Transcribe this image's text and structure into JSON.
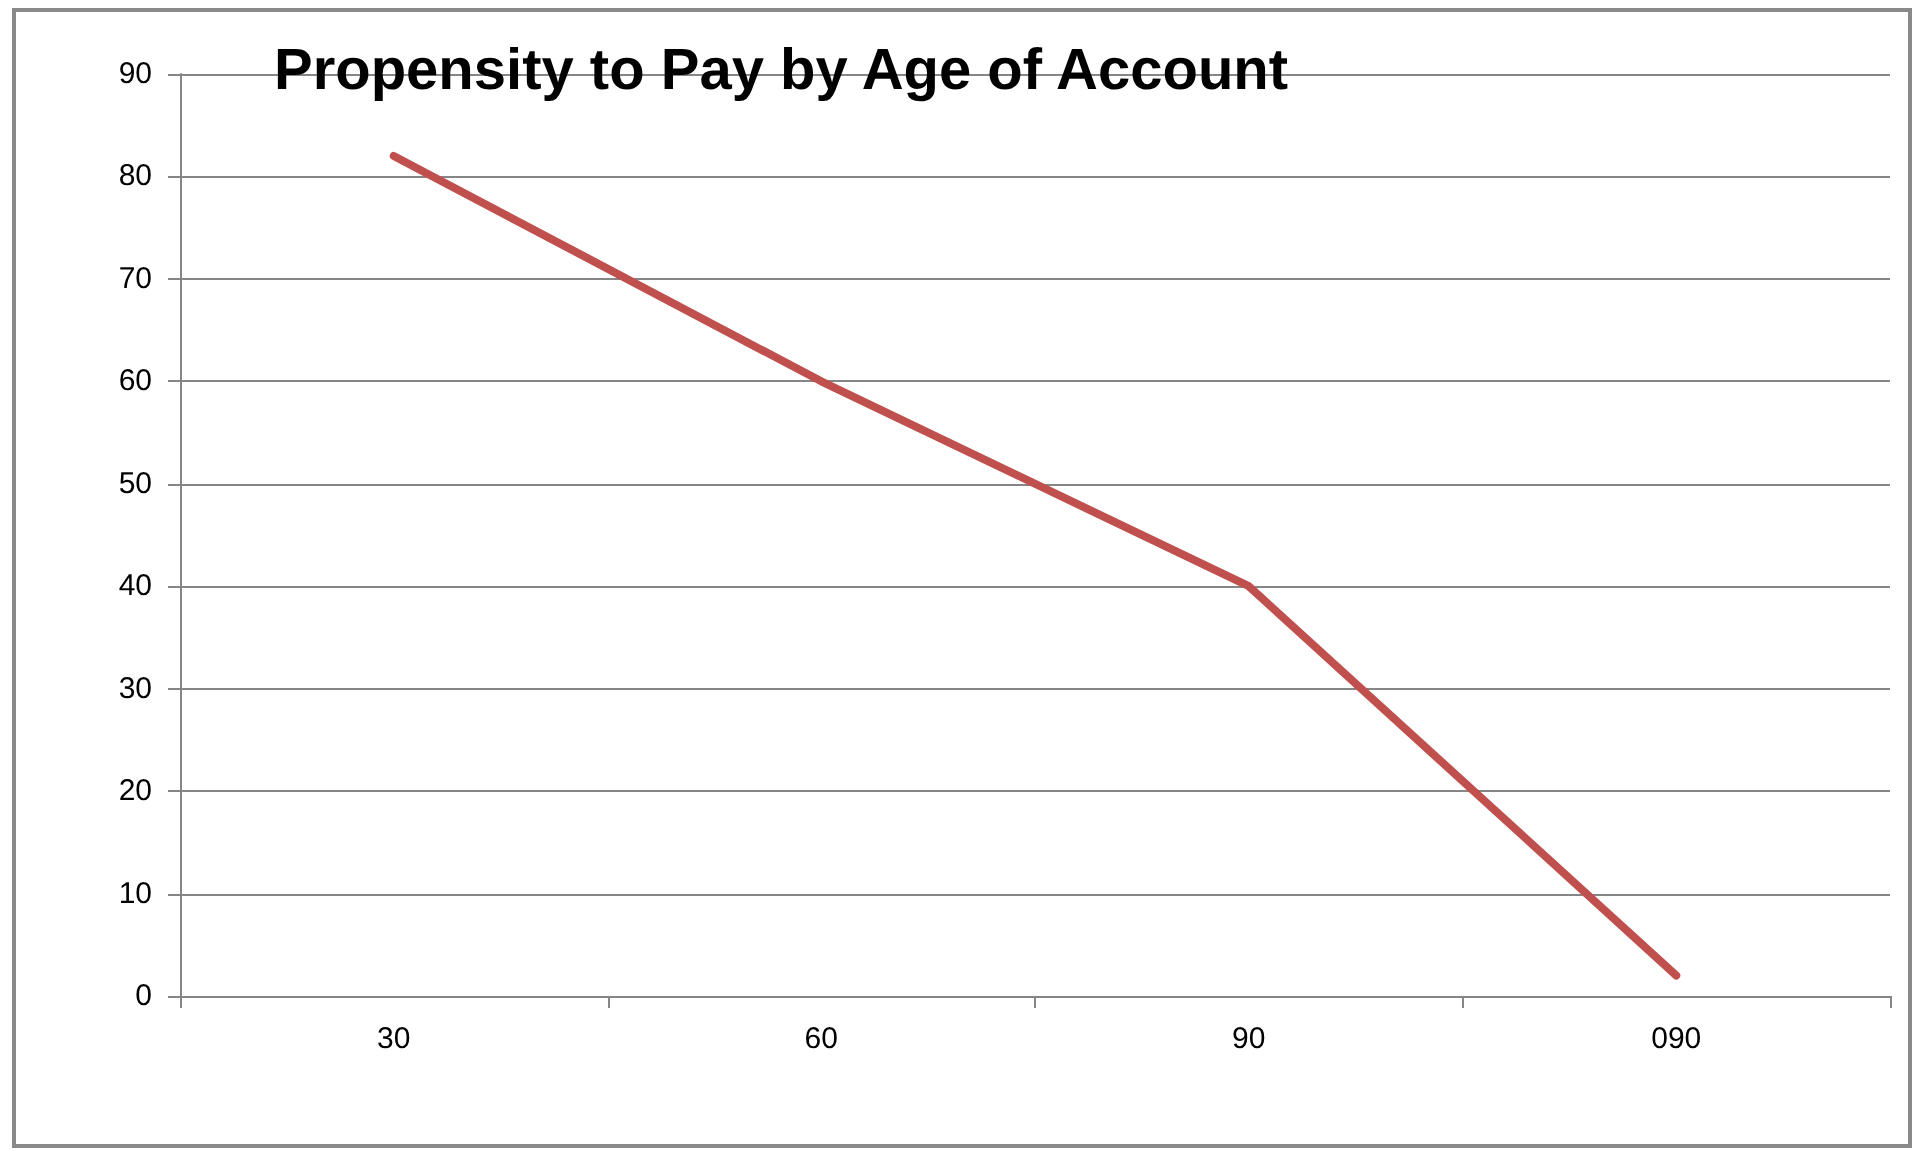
{
  "chart_data": {
    "type": "line",
    "title": "Propensity to Pay by Age of Account",
    "categories": [
      "30",
      "60",
      "90",
      "090"
    ],
    "series": [
      {
        "color": "#c0504d",
        "values": [
          82,
          60,
          40,
          2
        ]
      }
    ],
    "ylim": [
      0,
      90
    ],
    "yticks": [
      0,
      10,
      20,
      30,
      40,
      50,
      60,
      70,
      80,
      90
    ],
    "grid": "y",
    "marker": "none",
    "line_style": "solid"
  }
}
